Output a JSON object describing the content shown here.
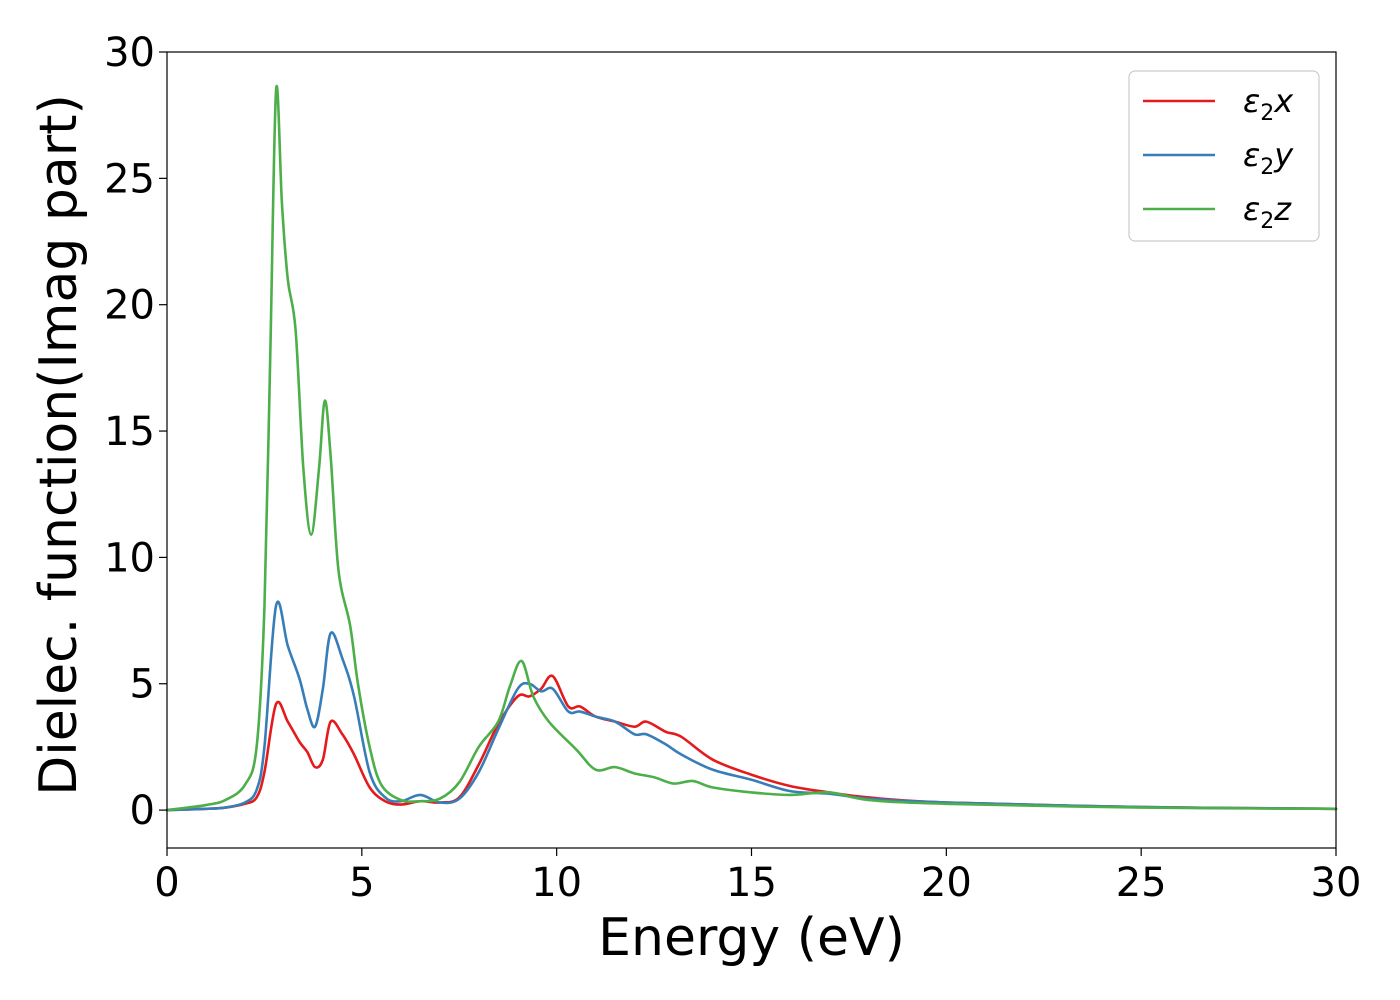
{
  "chart_data": {
    "type": "line",
    "title": "",
    "xlabel": "Energy (eV)",
    "ylabel": "Dielec. function(Imag part)",
    "xlim": [
      0,
      30
    ],
    "ylim": [
      -1.5,
      30
    ],
    "xticks": [
      0,
      5,
      10,
      15,
      20,
      25,
      30
    ],
    "yticks": [
      0,
      5,
      10,
      15,
      20,
      25,
      30
    ],
    "grid": false,
    "legend_position": "top-right",
    "series": [
      {
        "name": "ε2x",
        "legend_base": "ε",
        "legend_sub": "2",
        "legend_var": "x",
        "color": "#e41a1c",
        "x": [
          0,
          1,
          1.5,
          2.0,
          2.3,
          2.5,
          2.8,
          3.1,
          3.4,
          3.6,
          3.8,
          4.0,
          4.2,
          4.5,
          4.8,
          5.2,
          5.6,
          6.0,
          6.5,
          7.0,
          7.5,
          8.0,
          8.5,
          9.0,
          9.3,
          9.6,
          9.9,
          10.3,
          10.6,
          11.0,
          11.5,
          12.0,
          12.3,
          12.8,
          13.2,
          14.0,
          15.0,
          16.0,
          17.0,
          18.0,
          20.0,
          25.0,
          30.0
        ],
        "values": [
          0,
          0.05,
          0.1,
          0.25,
          0.5,
          1.5,
          4.2,
          3.5,
          2.7,
          2.3,
          1.7,
          2.0,
          3.5,
          3.0,
          2.2,
          0.9,
          0.35,
          0.22,
          0.35,
          0.3,
          0.5,
          1.8,
          3.4,
          4.5,
          4.5,
          4.8,
          5.3,
          4.1,
          4.1,
          3.7,
          3.5,
          3.3,
          3.5,
          3.1,
          2.9,
          2.0,
          1.4,
          0.95,
          0.7,
          0.5,
          0.3,
          0.12,
          0.05
        ]
      },
      {
        "name": "ε2y",
        "legend_base": "ε",
        "legend_sub": "2",
        "legend_var": "y",
        "color": "#377eb8",
        "x": [
          0,
          1,
          1.5,
          2.0,
          2.3,
          2.5,
          2.8,
          3.1,
          3.4,
          3.6,
          3.8,
          4.0,
          4.2,
          4.5,
          4.8,
          5.2,
          5.6,
          6.0,
          6.5,
          7.0,
          7.5,
          8.0,
          8.5,
          9.0,
          9.3,
          9.6,
          9.9,
          10.3,
          10.6,
          11.0,
          11.5,
          12.0,
          12.3,
          12.8,
          13.2,
          14.0,
          15.0,
          16.0,
          17.0,
          18.0,
          20.0,
          25.0,
          30.0
        ],
        "values": [
          0,
          0.05,
          0.1,
          0.3,
          0.8,
          2.5,
          8.1,
          6.5,
          5.2,
          4.0,
          3.3,
          4.8,
          7.0,
          6.0,
          4.5,
          1.5,
          0.5,
          0.35,
          0.6,
          0.3,
          0.45,
          1.5,
          3.2,
          4.8,
          5.0,
          4.7,
          4.8,
          3.9,
          3.9,
          3.7,
          3.5,
          3.0,
          3.0,
          2.6,
          2.2,
          1.6,
          1.2,
          0.75,
          0.65,
          0.45,
          0.3,
          0.12,
          0.05
        ]
      },
      {
        "name": "ε2z",
        "legend_base": "ε",
        "legend_sub": "2",
        "legend_var": "z",
        "color": "#4daf4a",
        "x": [
          0,
          1,
          1.5,
          2.0,
          2.3,
          2.5,
          2.65,
          2.8,
          2.95,
          3.1,
          3.3,
          3.5,
          3.7,
          3.9,
          4.05,
          4.2,
          4.4,
          4.7,
          4.9,
          5.2,
          5.5,
          6.0,
          6.5,
          7.0,
          7.5,
          8.0,
          8.5,
          8.8,
          9.1,
          9.4,
          9.8,
          10.5,
          11.0,
          11.5,
          12.0,
          12.5,
          13.0,
          13.5,
          14.0,
          15.0,
          16.0,
          17.0,
          18.0,
          20.0,
          25.0,
          30.0
        ],
        "values": [
          0,
          0.2,
          0.4,
          1.0,
          2.5,
          8.0,
          18.0,
          28.5,
          24.0,
          21.0,
          19.0,
          13.5,
          10.9,
          13.5,
          16.2,
          14.0,
          9.5,
          7.3,
          5.0,
          2.5,
          1.0,
          0.4,
          0.35,
          0.45,
          1.1,
          2.5,
          3.5,
          4.9,
          5.9,
          4.5,
          3.5,
          2.4,
          1.6,
          1.7,
          1.45,
          1.3,
          1.05,
          1.15,
          0.9,
          0.7,
          0.6,
          0.7,
          0.4,
          0.25,
          0.1,
          0.05
        ]
      }
    ]
  }
}
